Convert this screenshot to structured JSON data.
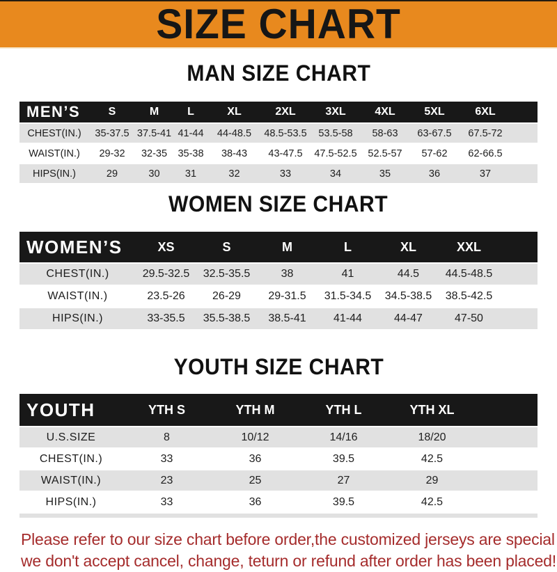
{
  "banner": {
    "title": "SIZE CHART"
  },
  "colors": {
    "banner_orange": "#E8891E",
    "header_bar_black": "#181818",
    "row_gray": "#E1E1E1",
    "footer_red": "#A52C2C"
  },
  "sections": [
    {
      "heading": "MAN SIZE CHART",
      "table": {
        "header_label": "MEN’S",
        "columns": [
          "S",
          "M",
          "L",
          "XL",
          "2XL",
          "3XL",
          "4XL",
          "5XL",
          "6XL"
        ],
        "rows": [
          {
            "label": "CHEST(IN.)",
            "values": [
              "35-37.5",
              "37.5-41",
              "41-44",
              "44-48.5",
              "48.5-53.5",
              "53.5-58",
              "58-63",
              "63-67.5",
              "67.5-72"
            ]
          },
          {
            "label": "WAIST(IN.)",
            "values": [
              "29-32",
              "32-35",
              "35-38",
              "38-43",
              "43-47.5",
              "47.5-52.5",
              "52.5-57",
              "57-62",
              "62-66.5"
            ]
          },
          {
            "label": "HIPS(IN.)",
            "values": [
              "29",
              "30",
              "31",
              "32",
              "33",
              "34",
              "35",
              "36",
              "37"
            ]
          }
        ]
      }
    },
    {
      "heading": "WOMEN SIZE CHART",
      "table": {
        "header_label": "WOMEN’S",
        "columns": [
          "XS",
          "S",
          "M",
          "L",
          "XL",
          "XXL"
        ],
        "rows": [
          {
            "label": "CHEST(IN.)",
            "values": [
              "29.5-32.5",
              "32.5-35.5",
              "38",
              "41",
              "44.5",
              "44.5-48.5"
            ]
          },
          {
            "label": "WAIST(IN.)",
            "values": [
              "23.5-26",
              "26-29",
              "29-31.5",
              "31.5-34.5",
              "34.5-38.5",
              "38.5-42.5"
            ]
          },
          {
            "label": "HIPS(IN.)",
            "values": [
              "33-35.5",
              "35.5-38.5",
              "38.5-41",
              "41-44",
              "44-47",
              "47-50"
            ]
          }
        ]
      }
    },
    {
      "heading": "YOUTH SIZE CHART",
      "table": {
        "header_label": "YOUTH",
        "columns": [
          "YTH S",
          "YTH M",
          "YTH L",
          "YTH XL"
        ],
        "rows": [
          {
            "label": "U.S.SIZE",
            "values": [
              "8",
              "10/12",
              "14/16",
              "18/20"
            ]
          },
          {
            "label": "CHEST(IN.)",
            "values": [
              "33",
              "36",
              "39.5",
              "42.5"
            ]
          },
          {
            "label": "WAIST(IN.)",
            "values": [
              "23",
              "25",
              "27",
              "29"
            ]
          },
          {
            "label": "HIPS(IN.)",
            "values": [
              "33",
              "36",
              "39.5",
              "42.5"
            ]
          }
        ]
      }
    }
  ],
  "footer": {
    "line1": "Please refer to our size chart before order,the customized jerseys are special products,",
    "line2": "we don't accept cancel, change, teturn or refund after order has been placed!"
  }
}
